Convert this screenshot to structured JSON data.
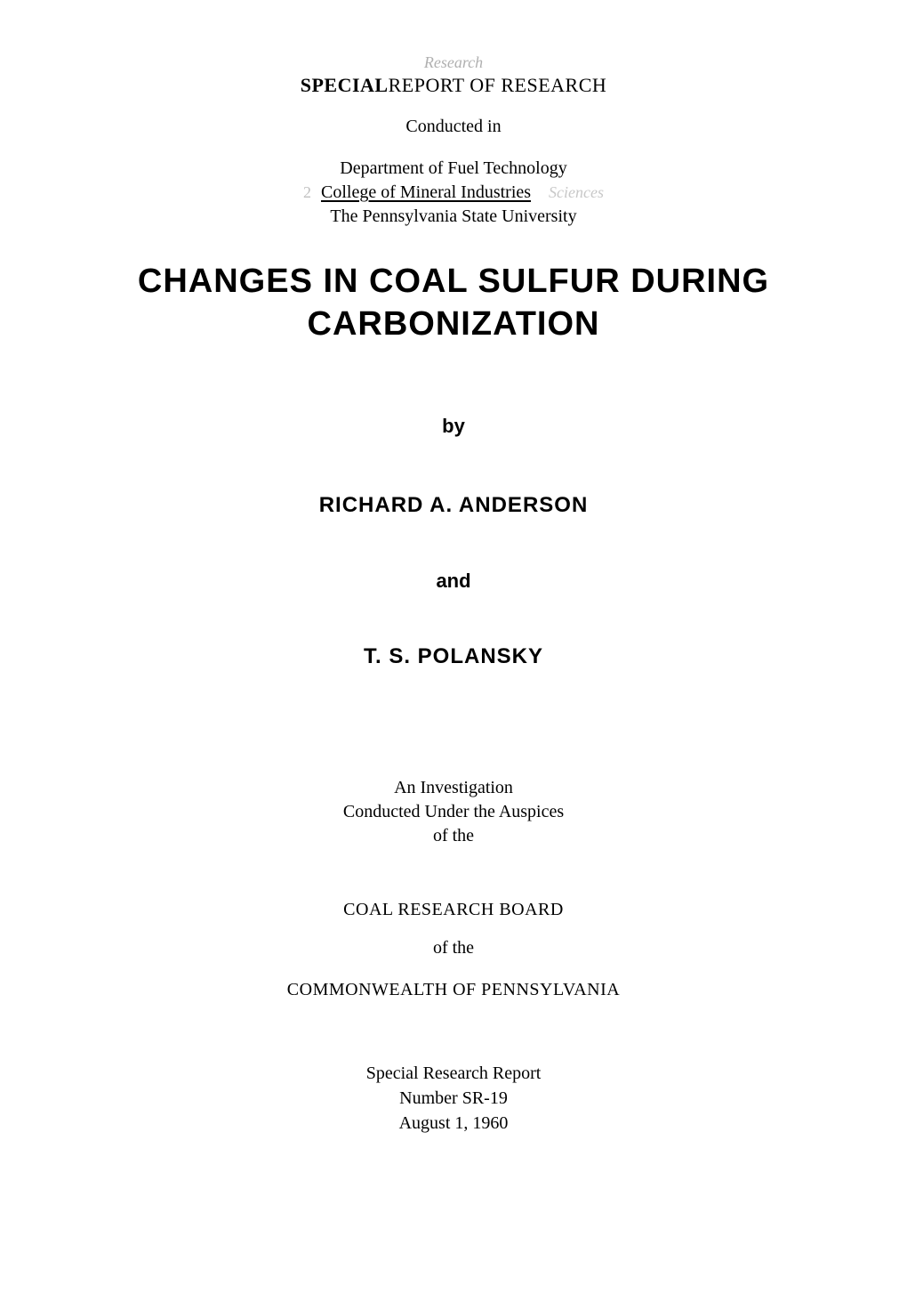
{
  "colors": {
    "page_background": "#ffffff",
    "text": "#000000",
    "faint_annotation": "#b0b0b0",
    "faint_text": "#c8c8c8"
  },
  "typography": {
    "body_font": "Times New Roman",
    "title_font": "Arial",
    "body_size_pt": 15,
    "title_size_pt": 28,
    "author_size_pt": 18
  },
  "header": {
    "annotation_top": "Research",
    "report_heading_1": "SPECIAL",
    "report_heading_2": "REPORT OF RESEARCH",
    "conducted_in": "Conducted in",
    "dept_line_1": "Department of Fuel Technology",
    "dept_line_2_num": "2",
    "dept_line_2": "College of Mineral Industries",
    "dept_line_2_faint": "Sciences",
    "dept_line_3": "The Pennsylvania State University"
  },
  "title": {
    "line1": "CHANGES IN COAL SULFUR DURING",
    "line2": "CARBONIZATION"
  },
  "by_label": "by",
  "author_1": "RICHARD  A.  ANDERSON",
  "and_label": "and",
  "author_2": "T.  S.  POLANSKY",
  "investigation": {
    "line1": "An Investigation",
    "line2": "Conducted Under the Auspices",
    "line3": "of the"
  },
  "board": "COAL RESEARCH BOARD",
  "of_the": "of the",
  "commonwealth": "COMMONWEALTH OF PENNSYLVANIA",
  "special": {
    "line1": "Special Research Report",
    "line2": "Number SR-19",
    "line3": "August 1, 1960"
  }
}
